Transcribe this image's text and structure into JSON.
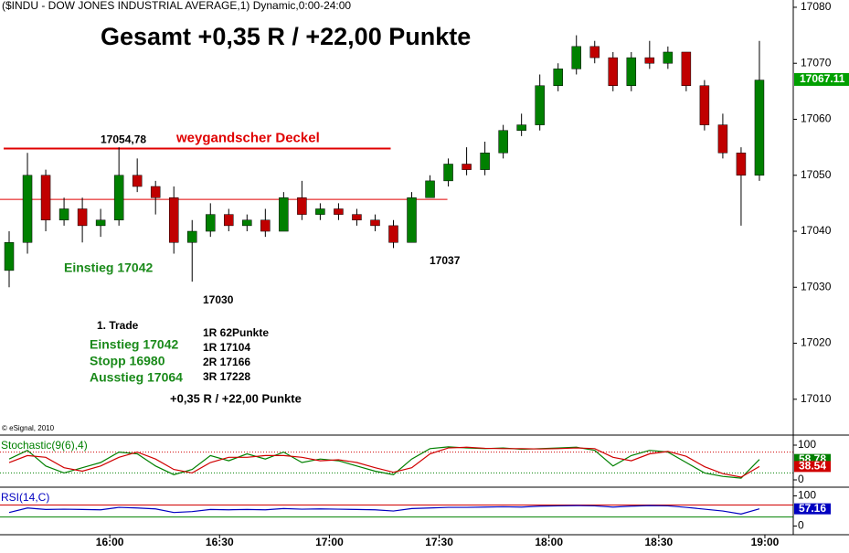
{
  "chart_data": {
    "type": "candlestick",
    "title": "($INDU - DOW JONES INDUSTRIAL AVERAGE,1) Dynamic,0:00-24:00",
    "watermark": "© eSignal, 2010",
    "headline": "Gesamt +0,35 R / +22,00 Punkte",
    "x": [
      930,
      935,
      940,
      945,
      950,
      955,
      960,
      965,
      970,
      975,
      980,
      985,
      990,
      995,
      1000,
      1005,
      1010,
      1015,
      1020,
      1025,
      1030,
      1035,
      1040,
      1045,
      1050,
      1055,
      1060,
      1065,
      1070,
      1075,
      1080,
      1085,
      1090,
      1095,
      1100,
      1105,
      1110,
      1115,
      1120,
      1125,
      1130,
      1135
    ],
    "open": [
      17033,
      17038,
      17050,
      17042,
      17044,
      17041,
      17042,
      17050,
      17048,
      17046,
      17038,
      17040,
      17043,
      17041,
      17042,
      17040,
      17046,
      17043,
      17044,
      17043,
      17042,
      17041,
      17038,
      17046,
      17049,
      17052,
      17051,
      17054,
      17058,
      17059,
      17066,
      17069,
      17073,
      17071,
      17066,
      17071,
      17070,
      17072,
      17066,
      17059,
      17054,
      17050
    ],
    "high": [
      17040,
      17054,
      17051,
      17046,
      17046,
      17044,
      17055,
      17053,
      17049,
      17048,
      17042,
      17045,
      17044,
      17043,
      17044,
      17047,
      17049,
      17045,
      17045,
      17044,
      17043,
      17042,
      17047,
      17050,
      17053,
      17055,
      17056,
      17059,
      17061,
      17068,
      17070,
      17075,
      17074,
      17072,
      17072,
      17074,
      17073,
      17072,
      17067,
      17061,
      17055,
      17074
    ],
    "low": [
      17030,
      17036,
      17040,
      17041,
      17038,
      17039,
      17041,
      17047,
      17043,
      17036,
      17031,
      17039,
      17040,
      17040,
      17039,
      17040,
      17042,
      17042,
      17042,
      17041,
      17040,
      17037,
      17038,
      17046,
      17048,
      17050,
      17050,
      17053,
      17057,
      17058,
      17065,
      17068,
      17070,
      17065,
      17065,
      17069,
      17069,
      17065,
      17058,
      17053,
      17041,
      17049
    ],
    "close": [
      17038,
      17050,
      17042,
      17044,
      17041,
      17042,
      17050,
      17048,
      17046,
      17038,
      17040,
      17043,
      17041,
      17042,
      17040,
      17046,
      17043,
      17044,
      17043,
      17042,
      17041,
      17038,
      17046,
      17049,
      17052,
      17051,
      17054,
      17058,
      17059,
      17066,
      17069,
      17073,
      17071,
      17066,
      17071,
      17070,
      17072,
      17066,
      17059,
      17054,
      17050,
      17067
    ],
    "up_color": "#008000",
    "down_color": "#c00000",
    "ylim": [
      17003.6,
      17081.3
    ],
    "yticks": [
      17010,
      17020,
      17030,
      17040,
      17050,
      17060,
      17070,
      17080
    ],
    "xlim": [
      930,
      1146.75
    ],
    "xticks": [
      {
        "value": 960,
        "label": "16:00"
      },
      {
        "value": 990,
        "label": "16:30"
      },
      {
        "value": 1020,
        "label": "17:00"
      },
      {
        "value": 1050,
        "label": "17:30"
      },
      {
        "value": 1080,
        "label": "18:00"
      },
      {
        "value": 1110,
        "label": "18:30"
      },
      {
        "value": 1139,
        "label": "19:00"
      }
    ],
    "last_price": 17067.11,
    "levels": [
      {
        "label": "weygandscher Deckel",
        "price_label": "17054,78",
        "value": 17054.78,
        "x": [
          931,
          1036.75
        ],
        "color": "#e00000",
        "width": 2
      },
      {
        "value": 17045.7,
        "x": [
          930,
          1052.25
        ],
        "color": "#e00000",
        "width": 1
      }
    ],
    "annotations": [
      "Einstieg 17042",
      "17030",
      "17037"
    ],
    "trade": {
      "title": "1. Trade",
      "left": [
        "Einstieg 17042",
        "Stopp 16980",
        "Ausstieg 17064"
      ],
      "right": [
        "1R 62Punkte",
        "1R 17104",
        "2R 17166",
        "3R 17228"
      ],
      "result": "+0,35 R / +22,00 Punkte"
    },
    "indicators": [
      {
        "name": "Stochastic(9(6),4)",
        "ylim": [
          -18.4,
          123.7
        ],
        "yticks": [
          0,
          100
        ],
        "levels": [
          {
            "value": 80,
            "color": "#d00000"
          },
          {
            "value": 20,
            "color": "#008000"
          }
        ],
        "series": [
          {
            "color": "#008000",
            "values": [
              60,
              85,
              40,
              20,
              35,
              50,
              80,
              75,
              40,
              15,
              30,
              70,
              55,
              75,
              60,
              80,
              50,
              60,
              55,
              40,
              25,
              15,
              60,
              90,
              95,
              92,
              90,
              92,
              88,
              90,
              92,
              94,
              85,
              40,
              70,
              85,
              80,
              50,
              20,
              10,
              5,
              58.78
            ]
          },
          {
            "color": "#d00000",
            "values": [
              50,
              70,
              65,
              35,
              25,
              40,
              65,
              80,
              60,
              30,
              20,
              50,
              65,
              65,
              70,
              70,
              65,
              55,
              58,
              50,
              35,
              22,
              35,
              75,
              92,
              94,
              91,
              90,
              90,
              89,
              90,
              92,
              90,
              65,
              55,
              75,
              82,
              68,
              38,
              18,
              8,
              38.54
            ]
          }
        ]
      },
      {
        "name": "RSI(14,C)",
        "ylim": [
          -25.7,
          122.9
        ],
        "yticks": [
          0,
          100
        ],
        "levels": [
          {
            "value": 70,
            "color": "#d00000"
          },
          {
            "value": 30,
            "color": "#008000"
          }
        ],
        "series": [
          {
            "color": "#0000c0",
            "values": [
              45,
              60,
              55,
              56,
              55,
              54,
              62,
              60,
              57,
              45,
              48,
              55,
              54,
              55,
              54,
              58,
              56,
              57,
              56,
              55,
              54,
              50,
              58,
              60,
              62,
              62,
              63,
              64,
              63,
              66,
              67,
              68,
              67,
              63,
              66,
              68,
              67,
              62,
              56,
              50,
              40,
              57.16
            ]
          }
        ]
      }
    ]
  }
}
